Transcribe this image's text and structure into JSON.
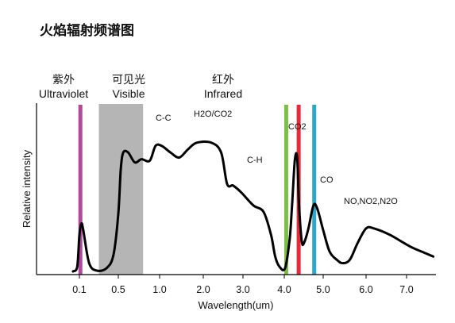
{
  "page_title": "火焰辐射频谱图",
  "chart_data": {
    "type": "line",
    "title": "火焰辐射频谱图",
    "xlabel": "Wavelength(um)",
    "ylabel": "Relative intensity",
    "x_tick_labels": [
      "0.1",
      "0.5",
      "1.0",
      "2.0",
      "3.0",
      "4.0",
      "5.0",
      "6.0",
      "7.0"
    ],
    "regions": [
      {
        "name_cn": "紫外",
        "name_en": "Ultraviolet"
      },
      {
        "name_cn": "可见光",
        "name_en": "Visible",
        "x_range": [
          "0.3",
          "0.8"
        ]
      },
      {
        "name_cn": "红外",
        "name_en": "Infrared"
      }
    ],
    "annotations": [
      "C-C",
      "H2O/CO2",
      "C-H",
      "CO2",
      "CO",
      "NO,NO2,N2O"
    ],
    "series": [
      {
        "color": "#000000",
        "points": [
          [
            0.07,
            0.0
          ],
          [
            0.09,
            0.03
          ],
          [
            0.1,
            0.22
          ],
          [
            0.12,
            0.29
          ],
          [
            0.14,
            0.25
          ],
          [
            0.2,
            0.05
          ],
          [
            0.28,
            0.005
          ],
          [
            0.38,
            0.02
          ],
          [
            0.45,
            0.1
          ],
          [
            0.5,
            0.35
          ],
          [
            0.53,
            0.62
          ],
          [
            0.56,
            0.72
          ],
          [
            0.62,
            0.72
          ],
          [
            0.7,
            0.66
          ],
          [
            0.78,
            0.68
          ],
          [
            0.88,
            0.67
          ],
          [
            0.95,
            0.76
          ],
          [
            1.05,
            0.76
          ],
          [
            1.25,
            0.72
          ],
          [
            1.45,
            0.69
          ],
          [
            1.65,
            0.74
          ],
          [
            1.85,
            0.78
          ],
          [
            2.2,
            0.78
          ],
          [
            2.45,
            0.72
          ],
          [
            2.6,
            0.53
          ],
          [
            2.75,
            0.52
          ],
          [
            2.95,
            0.48
          ],
          [
            3.25,
            0.4
          ],
          [
            3.5,
            0.36
          ],
          [
            3.68,
            0.22
          ],
          [
            3.78,
            0.09
          ],
          [
            3.88,
            0.03
          ],
          [
            4.02,
            0.02
          ],
          [
            4.14,
            0.2
          ],
          [
            4.2,
            0.4
          ],
          [
            4.27,
            0.67
          ],
          [
            4.33,
            0.69
          ],
          [
            4.38,
            0.4
          ],
          [
            4.45,
            0.18
          ],
          [
            4.52,
            0.18
          ],
          [
            4.62,
            0.26
          ],
          [
            4.75,
            0.4
          ],
          [
            4.85,
            0.38
          ],
          [
            5.0,
            0.25
          ],
          [
            5.15,
            0.12
          ],
          [
            5.32,
            0.07
          ],
          [
            5.45,
            0.05
          ],
          [
            5.62,
            0.07
          ],
          [
            5.8,
            0.17
          ],
          [
            6.0,
            0.26
          ],
          [
            6.2,
            0.26
          ],
          [
            6.6,
            0.22
          ],
          [
            7.1,
            0.15
          ],
          [
            7.5,
            0.11
          ],
          [
            7.7,
            0.09
          ]
        ]
      }
    ],
    "marker_lines": [
      {
        "x": 0.11,
        "color": "#b0489c"
      },
      {
        "x": 4.05,
        "color": "#7dbf45"
      },
      {
        "x": 4.37,
        "color": "#e52a3a"
      },
      {
        "x": 4.77,
        "color": "#2ea6c8"
      }
    ],
    "grid": false,
    "legend": "none"
  }
}
